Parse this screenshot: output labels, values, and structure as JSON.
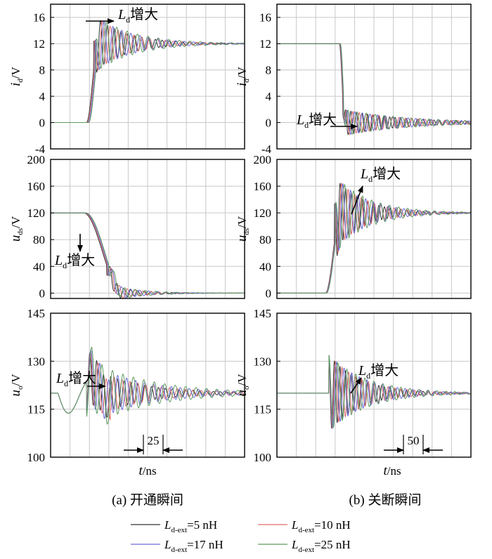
{
  "chart_data": [
    {
      "panel": "a",
      "row": 1,
      "type": "line",
      "ylabel": {
        "main": "i",
        "sub": "d",
        "unit": "/V"
      },
      "yticks": [
        -4,
        0,
        4,
        8,
        12,
        16
      ],
      "ylim": [
        -4,
        18
      ],
      "xlim": [
        0,
        130
      ],
      "annotation": {
        "main": "L",
        "sub": "d",
        "text": "增大"
      },
      "series": [
        {
          "name": "5 nH",
          "color": "#333333",
          "base": 0,
          "final": 12,
          "t0": 24,
          "rise": 8,
          "ringAmp": 4.3,
          "period": 4.6,
          "decay": 22,
          "dir": "up"
        },
        {
          "name": "10 nH",
          "color": "#e06a6a",
          "base": 0,
          "final": 12,
          "t0": 24.5,
          "rise": 8,
          "ringAmp": 4.3,
          "period": 5.3,
          "decay": 22,
          "dir": "up"
        },
        {
          "name": "17 nH",
          "color": "#6a6ad8",
          "base": 0,
          "final": 12,
          "t0": 25,
          "rise": 8,
          "ringAmp": 4.3,
          "period": 6.0,
          "decay": 24,
          "dir": "up"
        },
        {
          "name": "25 nH",
          "color": "#5e9a5e",
          "base": 0,
          "final": 12,
          "t0": 25.5,
          "rise": 8,
          "ringAmp": 4.3,
          "period": 7.0,
          "decay": 26,
          "dir": "up"
        }
      ]
    },
    {
      "panel": "b",
      "row": 1,
      "type": "line",
      "ylabel": {
        "main": "i",
        "sub": "d",
        "unit": "/V"
      },
      "yticks": [
        -4,
        0,
        4,
        8,
        12,
        16
      ],
      "ylim": [
        -4,
        18
      ],
      "xlim": [
        0,
        280
      ],
      "annotation": {
        "main": "L",
        "sub": "d",
        "text": "增大"
      },
      "series": [
        {
          "name": "5 nH",
          "color": "#333333",
          "base": 12,
          "final": 0,
          "t0": 90,
          "rise": 8,
          "ringAmp": 2.0,
          "period": 8,
          "decay": 80,
          "dir": "down"
        },
        {
          "name": "10 nH",
          "color": "#e06a6a",
          "base": 12,
          "final": 0,
          "t0": 90.5,
          "rise": 8,
          "ringAmp": 2.0,
          "period": 9.5,
          "decay": 85,
          "dir": "down"
        },
        {
          "name": "17 nH",
          "color": "#6a6ad8",
          "base": 12,
          "final": 0,
          "t0": 91,
          "rise": 8,
          "ringAmp": 2.0,
          "period": 11,
          "decay": 90,
          "dir": "down"
        },
        {
          "name": "25 nH",
          "color": "#5e9a5e",
          "base": 12,
          "final": 0,
          "t0": 91.5,
          "rise": 8,
          "ringAmp": 2.0,
          "period": 13,
          "decay": 95,
          "dir": "down"
        }
      ]
    },
    {
      "panel": "a",
      "row": 2,
      "type": "line",
      "ylabel": {
        "main": "u",
        "sub": "ds",
        "unit": "/V"
      },
      "yticks": [
        0,
        40,
        80,
        120,
        160,
        200
      ],
      "ylim": [
        -8,
        200
      ],
      "xlim": [
        0,
        130
      ],
      "annotation": {
        "main": "L",
        "sub": "d",
        "text": "增大"
      },
      "series": [
        {
          "name": "5 nH",
          "color": "#333333",
          "base": 120,
          "final": 0,
          "t0": 22,
          "rise": 26,
          "ringAmp": 14,
          "period": 4.6,
          "decay": 16,
          "dir": "down"
        },
        {
          "name": "10 nH",
          "color": "#e06a6a",
          "base": 120,
          "final": 0,
          "t0": 22.5,
          "rise": 26,
          "ringAmp": 14,
          "period": 5.3,
          "decay": 17,
          "dir": "down"
        },
        {
          "name": "17 nH",
          "color": "#6a6ad8",
          "base": 120,
          "final": 0,
          "t0": 23,
          "rise": 26,
          "ringAmp": 14,
          "period": 6.0,
          "decay": 18,
          "dir": "down"
        },
        {
          "name": "25 nH",
          "color": "#5e9a5e",
          "base": 120,
          "final": 0,
          "t0": 23.5,
          "rise": 26,
          "ringAmp": 14,
          "period": 7.0,
          "decay": 19,
          "dir": "down"
        }
      ]
    },
    {
      "panel": "b",
      "row": 2,
      "type": "line",
      "ylabel": {
        "main": "u",
        "sub": "ds",
        "unit": "/V"
      },
      "yticks": [
        0,
        40,
        80,
        120,
        160,
        200
      ],
      "ylim": [
        -8,
        200
      ],
      "xlim": [
        0,
        280
      ],
      "annotation": {
        "main": "L",
        "sub": "d",
        "text": "增大"
      },
      "series": [
        {
          "name": "5 nH",
          "color": "#333333",
          "base": 0,
          "final": 120,
          "t0": 70,
          "rise": 22,
          "ringAmp": 55,
          "period": 8,
          "decay": 40,
          "dir": "up"
        },
        {
          "name": "10 nH",
          "color": "#e06a6a",
          "base": 0,
          "final": 120,
          "t0": 70.5,
          "rise": 22,
          "ringAmp": 55,
          "period": 9.5,
          "decay": 43,
          "dir": "up"
        },
        {
          "name": "17 nH",
          "color": "#6a6ad8",
          "base": 0,
          "final": 120,
          "t0": 71,
          "rise": 22,
          "ringAmp": 55,
          "period": 11,
          "decay": 46,
          "dir": "up"
        },
        {
          "name": "25 nH",
          "color": "#5e9a5e",
          "base": 0,
          "final": 120,
          "t0": 71.5,
          "rise": 22,
          "ringAmp": 55,
          "period": 13,
          "decay": 50,
          "dir": "up"
        }
      ]
    },
    {
      "panel": "a",
      "row": 3,
      "type": "line",
      "ylabel": {
        "main": "u",
        "sub": "o",
        "unit": "/V"
      },
      "yticks": [
        100,
        115,
        130,
        145
      ],
      "ylim": [
        100,
        145
      ],
      "xlim": [
        0,
        130
      ],
      "annotation": {
        "main": "L",
        "sub": "d",
        "text": "增大"
      },
      "xlabel": {
        "main": "t",
        "unit": "/ns"
      },
      "scale": "25",
      "series": [
        {
          "name": "5 nH",
          "color": "#333333",
          "base": 120,
          "final": 120,
          "t0": 0,
          "rise": 1,
          "ringAmp": 9,
          "period": 4.6,
          "decay": 30,
          "dir": "osc"
        },
        {
          "name": "10 nH",
          "color": "#e06a6a",
          "base": 120,
          "final": 120,
          "t0": 0,
          "rise": 1,
          "ringAmp": 9,
          "period": 5.3,
          "decay": 33,
          "dir": "osc"
        },
        {
          "name": "17 nH",
          "color": "#6a6ad8",
          "base": 120,
          "final": 120,
          "t0": 0,
          "rise": 1,
          "ringAmp": 10,
          "period": 6.0,
          "decay": 36,
          "dir": "osc"
        },
        {
          "name": "25 nH",
          "color": "#5e9a5e",
          "base": 120,
          "final": 120,
          "t0": 0,
          "rise": 1,
          "ringAmp": 11,
          "period": 7.0,
          "decay": 40,
          "dir": "osc"
        }
      ]
    },
    {
      "panel": "b",
      "row": 3,
      "type": "line",
      "ylabel": {
        "main": "u",
        "sub": "o",
        "unit": "/V"
      },
      "yticks": [
        100,
        115,
        130,
        145
      ],
      "ylim": [
        100,
        145
      ],
      "xlim": [
        0,
        280
      ],
      "annotation": {
        "main": "L",
        "sub": "d",
        "text": "增大"
      },
      "xlabel": {
        "main": "t",
        "unit": "/ns"
      },
      "scale": "50",
      "series": [
        {
          "name": "5 nH",
          "color": "#333333",
          "base": 120,
          "final": 120,
          "t0": 0,
          "rise": 1,
          "ringAmp": 12,
          "period": 8,
          "decay": 45,
          "dir": "osc2"
        },
        {
          "name": "10 nH",
          "color": "#e06a6a",
          "base": 120,
          "final": 120,
          "t0": 0,
          "rise": 1,
          "ringAmp": 12,
          "period": 9.5,
          "decay": 48,
          "dir": "osc2"
        },
        {
          "name": "17 nH",
          "color": "#6a6ad8",
          "base": 120,
          "final": 120,
          "t0": 0,
          "rise": 1,
          "ringAmp": 12,
          "period": 11,
          "decay": 52,
          "dir": "osc2"
        },
        {
          "name": "25 nH",
          "color": "#5e9a5e",
          "base": 120,
          "final": 120,
          "t0": 0,
          "rise": 1,
          "ringAmp": 12,
          "period": 13,
          "decay": 56,
          "dir": "osc2"
        }
      ]
    }
  ],
  "captions": {
    "a": "(a) 开通瞬间",
    "b": "(b) 关断瞬间"
  },
  "legend": [
    {
      "main": "L",
      "sub": "d-ext",
      "value": "=5 nH",
      "color": "#333333"
    },
    {
      "main": "L",
      "sub": "d-ext",
      "value": "=10 nH",
      "color": "#e06a6a"
    },
    {
      "main": "L",
      "sub": "d-ext",
      "value": "=17 nH",
      "color": "#6a6ad8"
    },
    {
      "main": "L",
      "sub": "d-ext",
      "value": "=25 nH",
      "color": "#5e9a5e"
    }
  ]
}
